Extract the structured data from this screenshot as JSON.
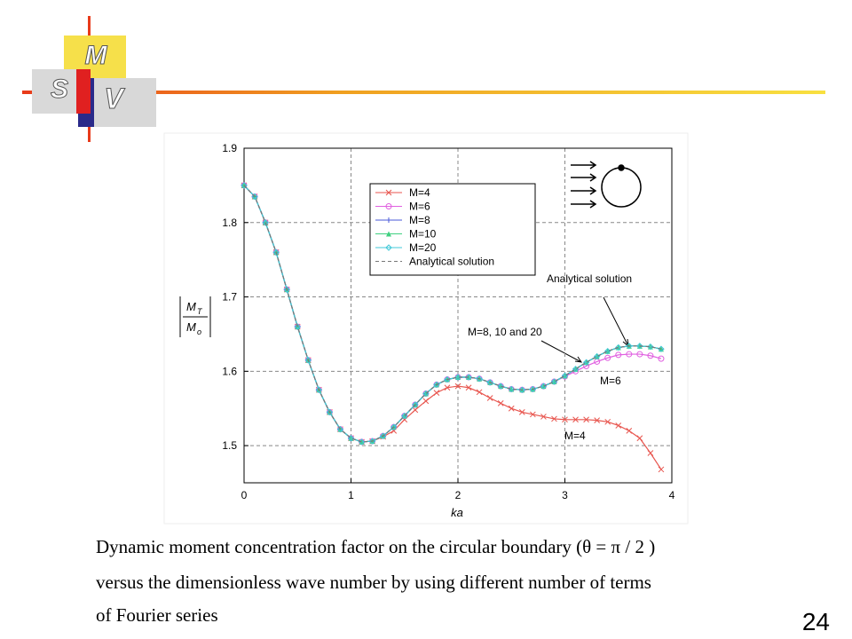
{
  "slide": {
    "logo": [
      "M",
      "S",
      "V"
    ],
    "caption": [
      "Dynamic moment concentration factor on the circular boundary (θ = π / 2 )",
      "versus the dimensionless wave number by using different number of terms",
      "of Fourier series"
    ],
    "page_number": "24"
  },
  "chart_data": {
    "type": "line",
    "xlabel": "ka",
    "ylabel": {
      "top": "M",
      "top_sub": "T",
      "bottom": "M",
      "bottom_sub": "o"
    },
    "annotations": [
      "Analytical solution",
      "M=8, 10 and 20",
      "M=6",
      "M=4"
    ],
    "x": [
      0,
      0.1,
      0.2,
      0.3,
      0.4,
      0.5,
      0.6,
      0.7,
      0.8,
      0.9,
      1.0,
      1.1,
      1.2,
      1.3,
      1.4,
      1.5,
      1.6,
      1.7,
      1.8,
      1.9,
      2.0,
      2.1,
      2.2,
      2.3,
      2.4,
      2.5,
      2.6,
      2.7,
      2.8,
      2.9,
      3.0,
      3.1,
      3.2,
      3.3,
      3.4,
      3.5,
      3.6,
      3.7,
      3.8,
      3.9
    ],
    "series": [
      {
        "name": "M=4",
        "color": "#e8564f",
        "marker": "x",
        "values": [
          1.85,
          1.835,
          1.8,
          1.76,
          1.71,
          1.66,
          1.615,
          1.575,
          1.545,
          1.522,
          1.51,
          1.505,
          1.506,
          1.512,
          1.52,
          1.535,
          1.548,
          1.56,
          1.571,
          1.578,
          1.58,
          1.578,
          1.572,
          1.564,
          1.557,
          1.55,
          1.545,
          1.542,
          1.539,
          1.536,
          1.535,
          1.535,
          1.535,
          1.534,
          1.532,
          1.527,
          1.52,
          1.51,
          1.49,
          1.468
        ]
      },
      {
        "name": "M=6",
        "color": "#e060e0",
        "marker": "circle",
        "values": [
          1.85,
          1.835,
          1.8,
          1.76,
          1.71,
          1.66,
          1.615,
          1.575,
          1.545,
          1.522,
          1.51,
          1.505,
          1.506,
          1.513,
          1.525,
          1.54,
          1.555,
          1.57,
          1.582,
          1.589,
          1.592,
          1.592,
          1.59,
          1.585,
          1.58,
          1.576,
          1.575,
          1.576,
          1.58,
          1.586,
          1.593,
          1.6,
          1.607,
          1.613,
          1.618,
          1.622,
          1.623,
          1.623,
          1.621,
          1.617
        ]
      },
      {
        "name": "M=8",
        "color": "#4a5ad8",
        "marker": "plus",
        "values": [
          1.85,
          1.835,
          1.8,
          1.76,
          1.71,
          1.66,
          1.615,
          1.575,
          1.545,
          1.522,
          1.51,
          1.505,
          1.506,
          1.513,
          1.525,
          1.54,
          1.555,
          1.57,
          1.582,
          1.589,
          1.592,
          1.592,
          1.59,
          1.585,
          1.58,
          1.576,
          1.575,
          1.576,
          1.58,
          1.586,
          1.594,
          1.603,
          1.612,
          1.62,
          1.627,
          1.632,
          1.634,
          1.634,
          1.633,
          1.63
        ]
      },
      {
        "name": "M=10",
        "color": "#40d080",
        "marker": "triangle",
        "values": [
          1.85,
          1.835,
          1.8,
          1.76,
          1.71,
          1.66,
          1.615,
          1.575,
          1.545,
          1.522,
          1.51,
          1.505,
          1.506,
          1.513,
          1.525,
          1.54,
          1.555,
          1.57,
          1.582,
          1.589,
          1.592,
          1.592,
          1.59,
          1.585,
          1.58,
          1.576,
          1.575,
          1.576,
          1.58,
          1.586,
          1.594,
          1.603,
          1.612,
          1.62,
          1.627,
          1.632,
          1.634,
          1.634,
          1.633,
          1.63
        ]
      },
      {
        "name": "M=20",
        "color": "#40c8d8",
        "marker": "diamond",
        "values": [
          1.85,
          1.835,
          1.8,
          1.76,
          1.71,
          1.66,
          1.615,
          1.575,
          1.545,
          1.522,
          1.51,
          1.505,
          1.506,
          1.513,
          1.525,
          1.54,
          1.555,
          1.57,
          1.582,
          1.589,
          1.592,
          1.592,
          1.59,
          1.585,
          1.58,
          1.576,
          1.575,
          1.576,
          1.58,
          1.586,
          1.594,
          1.603,
          1.612,
          1.62,
          1.627,
          1.632,
          1.634,
          1.634,
          1.633,
          1.63
        ]
      },
      {
        "name": "Analytical solution",
        "color": "#777777",
        "marker": "dashed",
        "values": [
          1.85,
          1.835,
          1.8,
          1.76,
          1.71,
          1.66,
          1.615,
          1.575,
          1.545,
          1.522,
          1.51,
          1.505,
          1.506,
          1.513,
          1.525,
          1.54,
          1.555,
          1.57,
          1.582,
          1.589,
          1.592,
          1.592,
          1.59,
          1.585,
          1.58,
          1.576,
          1.575,
          1.576,
          1.58,
          1.586,
          1.594,
          1.603,
          1.612,
          1.62,
          1.627,
          1.632,
          1.634,
          1.634,
          1.633,
          1.63
        ]
      }
    ],
    "xlim": [
      0,
      4
    ],
    "xticks": [
      0,
      1,
      2,
      3,
      4
    ],
    "ylim": [
      1.45,
      1.9
    ],
    "yticks": [
      1.5,
      1.6,
      1.7,
      1.8,
      1.9
    ],
    "grid": true,
    "legend": "upper center"
  }
}
